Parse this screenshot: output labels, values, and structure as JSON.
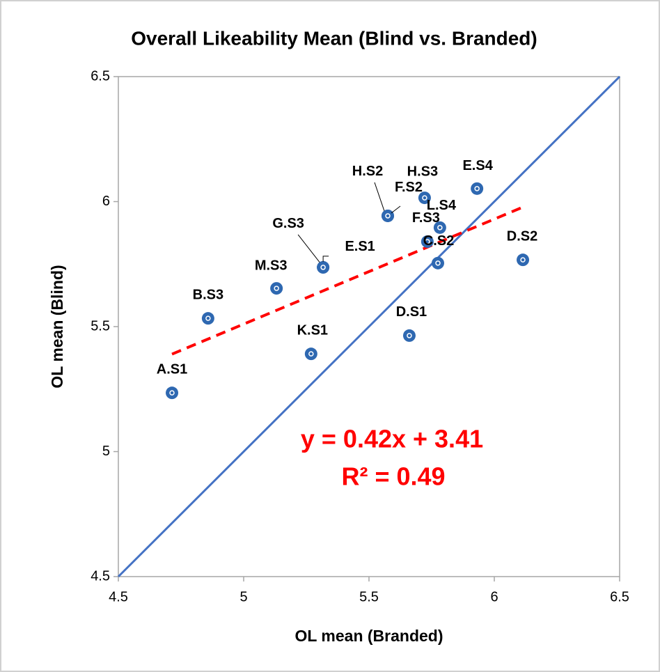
{
  "chart_data": {
    "type": "scatter",
    "title": "Overall Likeability Mean (Blind vs. Branded)",
    "x_label": "OL mean (Branded)",
    "y_label": "OL mean (Blind)",
    "labels": [
      "A.S1",
      "B.S3",
      "M.S3",
      "K.S1",
      "G.S3",
      "E.S1",
      "H.S2",
      "F.S2",
      "D.S1",
      "H.S3",
      "E.S4",
      "L.S4",
      "F.S3",
      "C.S2",
      "D.S2"
    ],
    "x": [
      4.714,
      4.858,
      5.131,
      5.269,
      5.317,
      5.317,
      5.575,
      5.575,
      5.661,
      5.722,
      5.931,
      5.783,
      5.733,
      5.775,
      6.114
    ],
    "y": [
      5.235,
      5.533,
      5.653,
      5.391,
      5.737,
      5.737,
      5.943,
      5.943,
      5.464,
      6.015,
      6.052,
      5.896,
      5.84,
      5.754,
      5.767
    ],
    "color": "#2e68b1",
    "xlim": [
      4.5,
      6.5
    ],
    "ylim": [
      4.5,
      6.5
    ],
    "xticks": [
      4.5,
      5,
      5.5,
      6,
      6.5
    ],
    "yticks": [
      4.5,
      5,
      5.5,
      6,
      6.5
    ],
    "grid": false,
    "identity_line_color": "#4472c4",
    "trendline": {
      "slope": 0.42,
      "intercept": 3.41,
      "color": "#ff0000",
      "equation": "y = 0.42x + 3.41",
      "r2": "R² = 0.49"
    }
  }
}
